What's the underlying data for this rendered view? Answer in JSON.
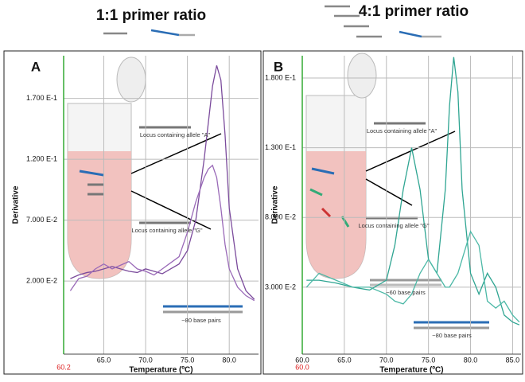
{
  "chart_data": [
    {
      "type": "line",
      "title": "1:1 primer ratio",
      "panel": "A",
      "x_label": "Temperature (ºC)",
      "y_label": "Derivative",
      "x_origin": 60.2,
      "xlim": [
        60.2,
        83.5
      ],
      "ylim": [
        -0.04,
        0.205
      ],
      "xticks": [
        {
          "value": 65,
          "label": "65.0"
        },
        {
          "value": 70,
          "label": "70.0"
        },
        {
          "value": 75,
          "label": "75.0"
        },
        {
          "value": 80,
          "label": "80.0"
        }
      ],
      "yticks": [
        {
          "value": 0.17,
          "label": "1.700 E-1"
        },
        {
          "value": 0.12,
          "label": "1.200 E-1"
        },
        {
          "value": 0.07,
          "label": "7.000 E-2"
        },
        {
          "value": 0.02,
          "label": "2.000 E-2"
        }
      ],
      "grid": true,
      "x": [
        61,
        62,
        63,
        64,
        65,
        66,
        67,
        68,
        69,
        70,
        71,
        72,
        73,
        74,
        75,
        76,
        77,
        77.5,
        78,
        78.5,
        79,
        79.5,
        80,
        81,
        82,
        83
      ],
      "series": [
        {
          "color": "#7b4b9c",
          "values": [
            0.022,
            0.025,
            0.027,
            0.028,
            0.03,
            0.032,
            0.03,
            0.028,
            0.027,
            0.03,
            0.028,
            0.026,
            0.03,
            0.034,
            0.045,
            0.07,
            0.12,
            0.15,
            0.18,
            0.197,
            0.185,
            0.14,
            0.08,
            0.03,
            0.012,
            0.005
          ]
        },
        {
          "color": "#9a6ab8",
          "values": [
            0.012,
            0.022,
            0.024,
            0.03,
            0.034,
            0.03,
            0.033,
            0.036,
            0.03,
            0.028,
            0.025,
            0.03,
            0.035,
            0.04,
            0.06,
            0.085,
            0.105,
            0.112,
            0.115,
            0.105,
            0.08,
            0.05,
            0.03,
            0.015,
            0.008,
            0.004
          ]
        }
      ],
      "annotations": [
        "Locus containing allele \"A\"",
        "Locus containing allele \"G\"",
        "~80 base pairs"
      ]
    },
    {
      "type": "line",
      "title": "4:1 primer ratio",
      "panel": "B",
      "x_label": "Temperature (ºC)",
      "y_label": "Derivative",
      "x_origin": {
        "value": 60,
        "label": "60.0"
      },
      "xlim": [
        60,
        86
      ],
      "ylim": [
        -0.018,
        0.196
      ],
      "xticks": [
        {
          "value": 60,
          "label": "60.0"
        },
        {
          "value": 65,
          "label": "65.0"
        },
        {
          "value": 70,
          "label": "70.0"
        },
        {
          "value": 75,
          "label": "75.0"
        },
        {
          "value": 80,
          "label": "80.0"
        },
        {
          "value": 85,
          "label": "85.0"
        }
      ],
      "yticks": [
        {
          "value": 0.18,
          "label": "1.800 E-1"
        },
        {
          "value": 0.13,
          "label": "1.300 E-1"
        },
        {
          "value": 0.08,
          "label": "8.000 E-2"
        },
        {
          "value": 0.03,
          "label": "3.000 E-2"
        }
      ],
      "grid": true,
      "x": [
        60.5,
        62,
        64,
        66,
        68,
        70,
        71,
        72,
        73,
        74,
        75,
        76,
        77,
        77.5,
        78,
        78.5,
        79,
        80,
        81,
        82,
        83,
        84,
        85,
        85.8
      ],
      "series": [
        {
          "color": "#2fa592",
          "values": [
            0.035,
            0.035,
            0.033,
            0.03,
            0.028,
            0.035,
            0.06,
            0.1,
            0.13,
            0.1,
            0.05,
            0.04,
            0.1,
            0.16,
            0.195,
            0.17,
            0.1,
            0.04,
            0.025,
            0.04,
            0.03,
            0.01,
            0.005,
            0.003
          ]
        },
        {
          "color": "#4bb8a6",
          "values": [
            0.03,
            0.04,
            0.035,
            0.03,
            0.03,
            0.025,
            0.02,
            0.018,
            0.025,
            0.04,
            0.05,
            0.04,
            0.03,
            0.03,
            0.035,
            0.04,
            0.05,
            0.07,
            0.06,
            0.02,
            0.015,
            0.02,
            0.01,
            0.005
          ]
        }
      ],
      "annotations": [
        "Locus containing allele \"A\"",
        "Locus containing allele \"G\"",
        "~60 base pairs",
        "~80 base pairs"
      ]
    }
  ]
}
